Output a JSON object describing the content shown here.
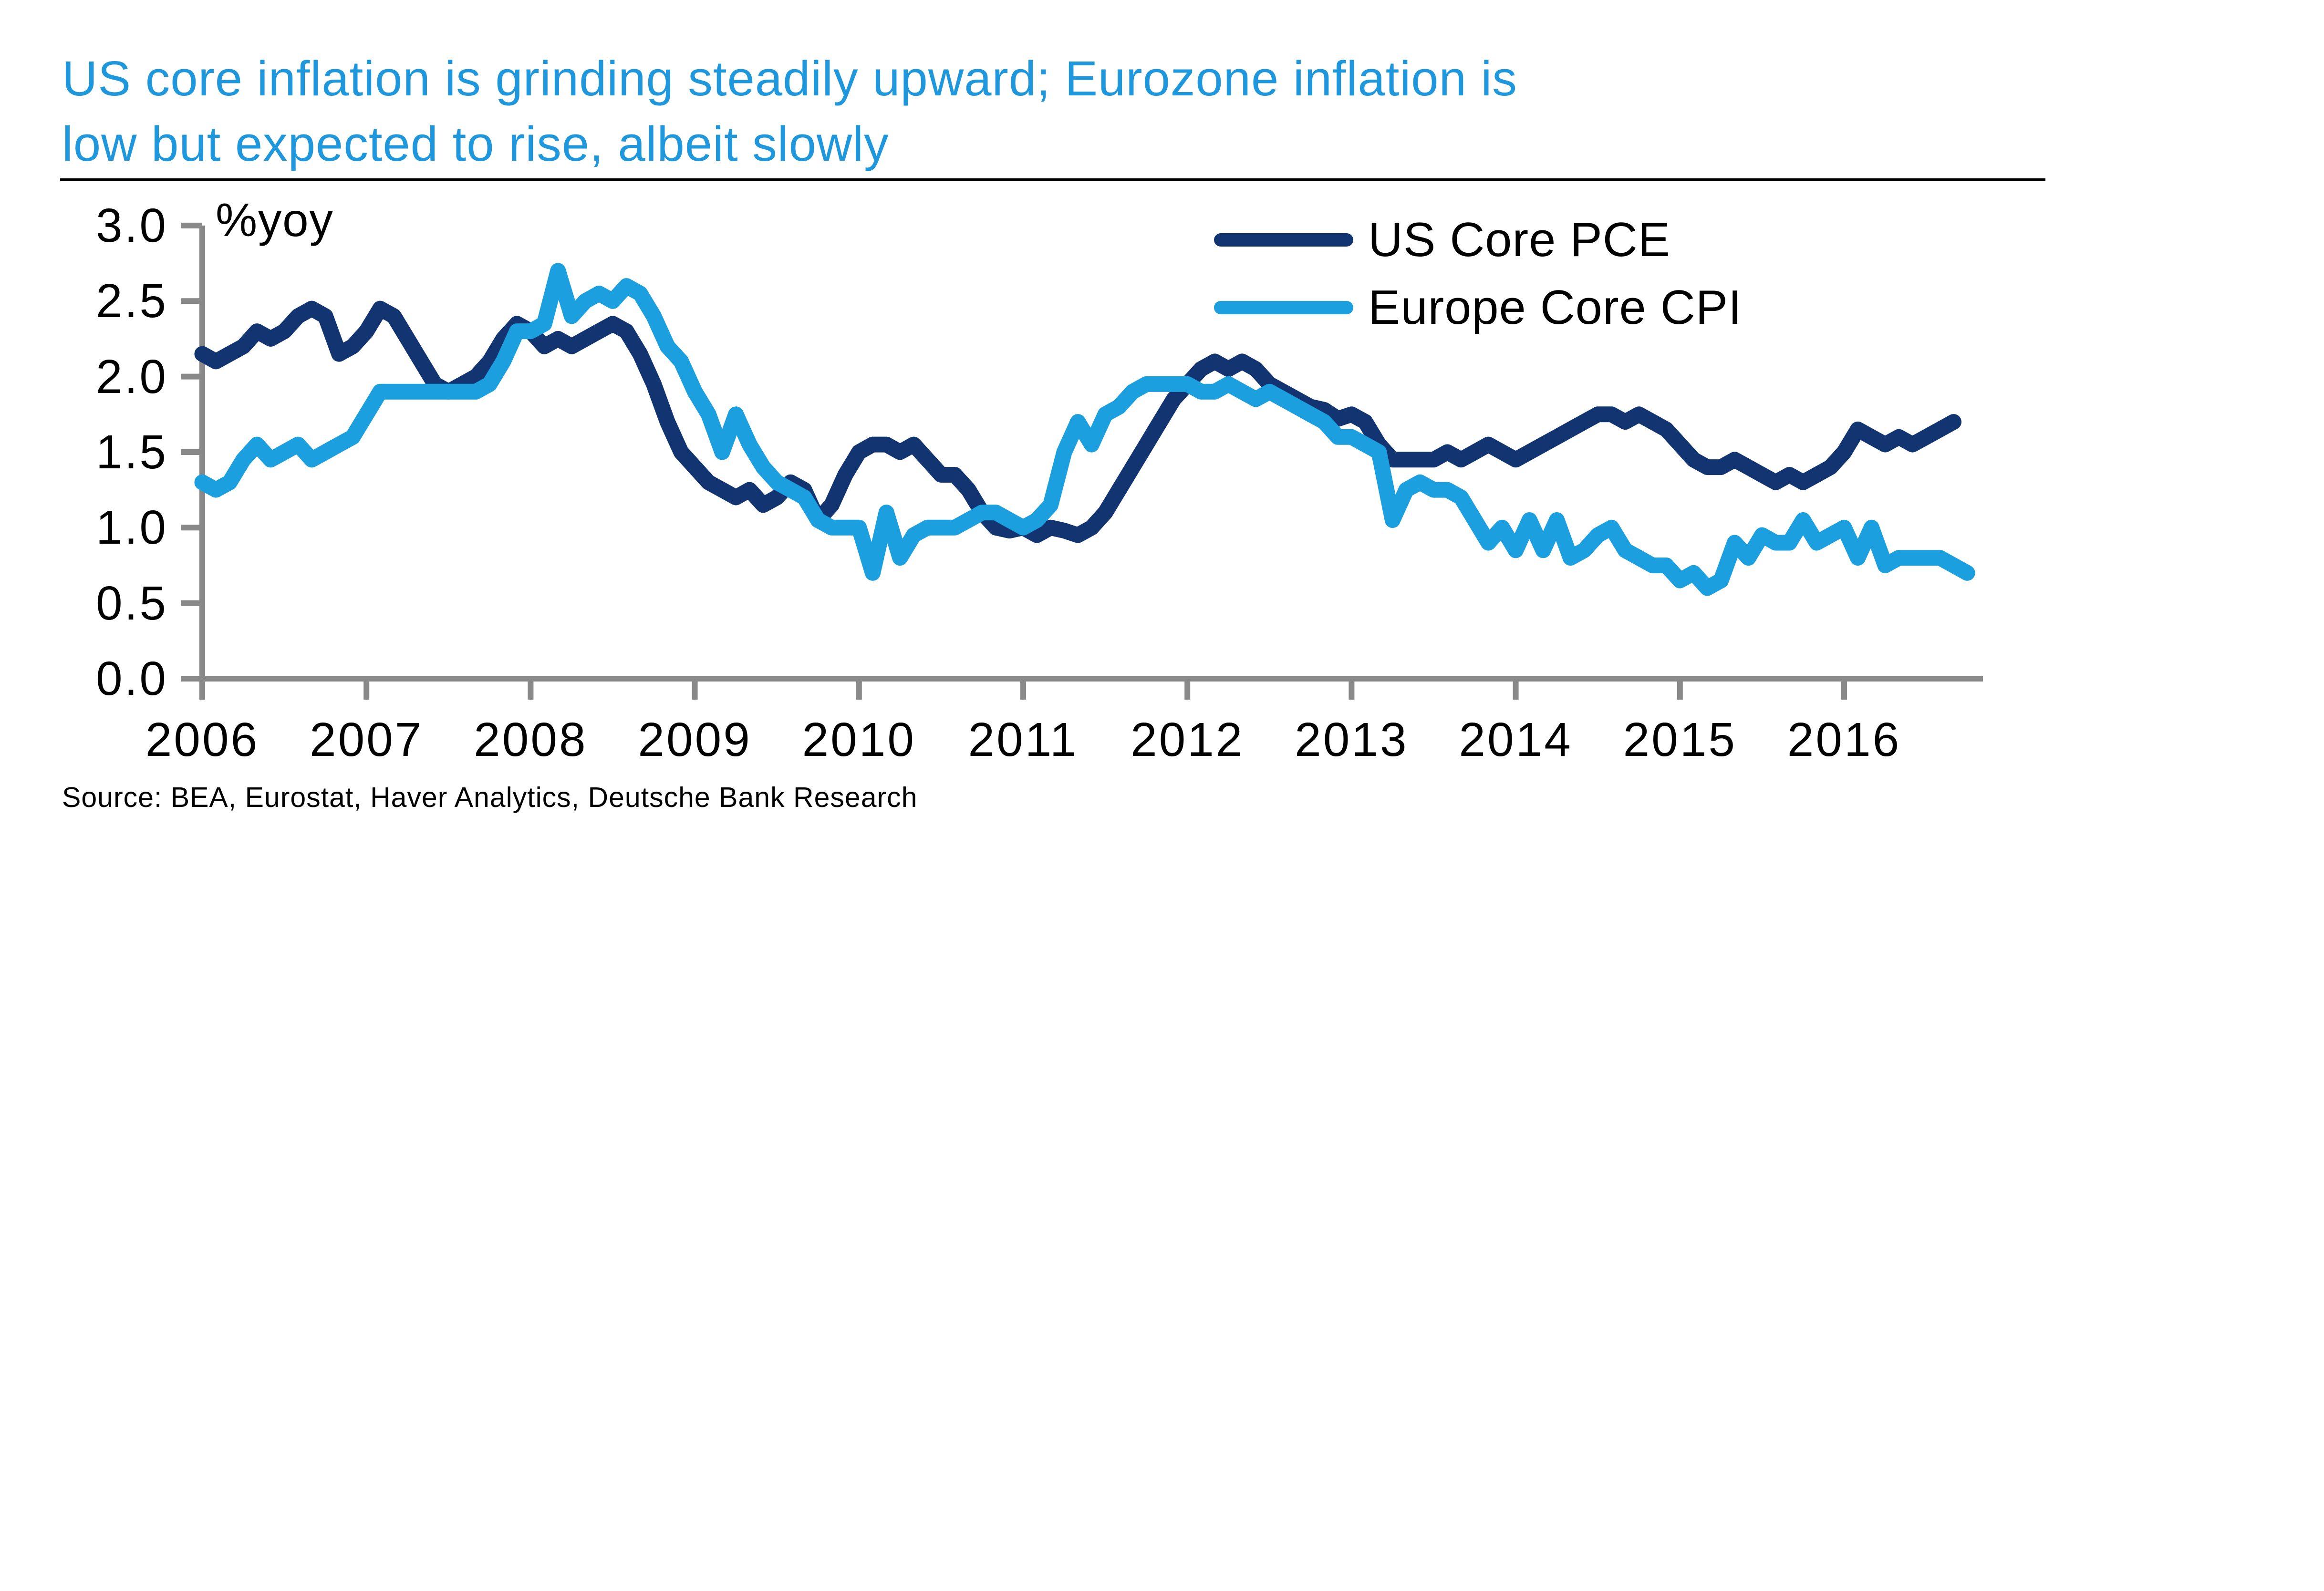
{
  "title": {
    "line1": "US core inflation is grinding steadily upward; Eurozone inflation is",
    "line2": "low but expected to rise, albeit slowly"
  },
  "source_note": "Source:  BEA, Eurostat, Haver Analytics,  Deutsche Bank Research",
  "colors": {
    "title": "#1e97dd",
    "axis": "#898989",
    "text": "#000000",
    "rule": "#000000",
    "background": "#ffffff",
    "us_series": "#123572",
    "europe_series": "#1b9fde"
  },
  "chart_data": {
    "type": "line",
    "title": "US core inflation is grinding steadily upward; Eurozone inflation is low but expected to rise, albeit slowly",
    "unit_label": "%yoy",
    "xlabel": "",
    "ylabel": "%yoy",
    "ylim": [
      0.0,
      3.0
    ],
    "y_tick_labels": [
      "3.0",
      "2.5",
      "2.0",
      "1.5",
      "1.0",
      "0.5",
      "0.0"
    ],
    "x_tick_labels": [
      "2006",
      "2007",
      "2008",
      "2009",
      "2010",
      "2011",
      "2012",
      "2013",
      "2014",
      "2015",
      "2016"
    ],
    "grid": false,
    "legend_position": "top-right-inside",
    "frequency": "monthly",
    "x_start": "2006-01",
    "series": [
      {
        "name": "US Core PCE",
        "color": "#123572",
        "values": [
          2.15,
          2.1,
          2.15,
          2.2,
          2.3,
          2.25,
          2.3,
          2.4,
          2.45,
          2.4,
          2.15,
          2.2,
          2.3,
          2.45,
          2.4,
          2.25,
          2.1,
          1.95,
          1.9,
          1.95,
          2.0,
          2.1,
          2.25,
          2.35,
          2.3,
          2.2,
          2.25,
          2.2,
          2.25,
          2.3,
          2.35,
          2.3,
          2.15,
          1.95,
          1.7,
          1.5,
          1.4,
          1.3,
          1.25,
          1.2,
          1.25,
          1.15,
          1.2,
          1.3,
          1.25,
          1.05,
          1.15,
          1.35,
          1.5,
          1.55,
          1.55,
          1.5,
          1.55,
          1.45,
          1.35,
          1.35,
          1.25,
          1.1,
          1.0,
          0.98,
          1.0,
          0.95,
          1.0,
          0.98,
          0.95,
          1.0,
          1.1,
          1.25,
          1.4,
          1.55,
          1.7,
          1.85,
          1.95,
          2.05,
          2.1,
          2.05,
          2.1,
          2.05,
          1.95,
          1.9,
          1.85,
          1.8,
          1.78,
          1.72,
          1.75,
          1.7,
          1.55,
          1.45,
          1.45,
          1.45,
          1.45,
          1.5,
          1.45,
          1.5,
          1.55,
          1.5,
          1.45,
          1.5,
          1.55,
          1.6,
          1.65,
          1.7,
          1.75,
          1.75,
          1.7,
          1.75,
          1.7,
          1.65,
          1.55,
          1.45,
          1.4,
          1.4,
          1.45,
          1.4,
          1.35,
          1.3,
          1.35,
          1.3,
          1.35,
          1.4,
          1.5,
          1.65,
          1.6,
          1.55,
          1.6,
          1.55,
          1.6,
          1.65,
          1.7
        ]
      },
      {
        "name": "Europe Core CPI",
        "color": "#1b9fde",
        "values": [
          1.3,
          1.25,
          1.3,
          1.45,
          1.55,
          1.45,
          1.5,
          1.55,
          1.45,
          1.5,
          1.55,
          1.6,
          1.75,
          1.9,
          1.9,
          1.9,
          1.9,
          1.9,
          1.9,
          1.9,
          1.9,
          1.95,
          2.1,
          2.3,
          2.3,
          2.35,
          2.7,
          2.4,
          2.5,
          2.55,
          2.5,
          2.6,
          2.55,
          2.4,
          2.2,
          2.1,
          1.9,
          1.75,
          1.5,
          1.75,
          1.55,
          1.4,
          1.3,
          1.25,
          1.2,
          1.05,
          1.0,
          1.0,
          1.0,
          0.7,
          1.1,
          0.8,
          0.95,
          1.0,
          1.0,
          1.0,
          1.05,
          1.1,
          1.1,
          1.05,
          1.0,
          1.05,
          1.15,
          1.5,
          1.7,
          1.55,
          1.75,
          1.8,
          1.9,
          1.95,
          1.95,
          1.95,
          1.95,
          1.9,
          1.9,
          1.95,
          1.9,
          1.85,
          1.9,
          1.85,
          1.8,
          1.75,
          1.7,
          1.6,
          1.6,
          1.55,
          1.5,
          1.05,
          1.25,
          1.3,
          1.25,
          1.25,
          1.2,
          1.05,
          0.9,
          1.0,
          0.85,
          1.05,
          0.85,
          1.05,
          0.8,
          0.85,
          0.95,
          1.0,
          0.85,
          0.8,
          0.75,
          0.75,
          0.65,
          0.7,
          0.6,
          0.65,
          0.9,
          0.8,
          0.95,
          0.9,
          0.9,
          1.05,
          0.9,
          0.95,
          1.0,
          0.8,
          1.0,
          0.75,
          0.8,
          0.8,
          0.8,
          0.8,
          0.75,
          0.7
        ]
      }
    ]
  }
}
